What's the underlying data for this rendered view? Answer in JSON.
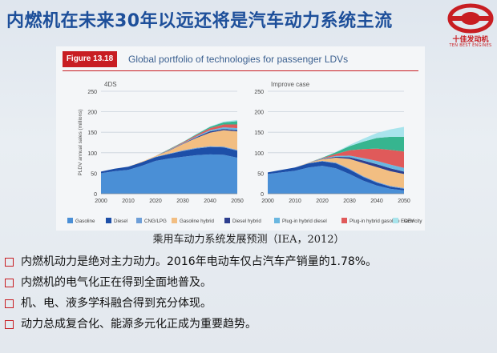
{
  "slide": {
    "title": "内燃机在未来30年以远还将是汽车动力系统主流",
    "logo_cn": "十佳发动机",
    "logo_en": "TEN BEST ENGINES",
    "caption": "乘用车动力系统发展预测（IEA，2012）",
    "bullets": [
      "内燃机动力是绝对主力动力。2016年电动车仅占汽车产销量的1.78%。",
      "内燃机的电气化正在得到全面地普及。",
      "机、电、液多学科融合得到充分体现。",
      "动力总成复合化、能源多元化正成为重要趋势。"
    ],
    "accent_color": "#c81d22",
    "title_color": "#1d4f9a"
  },
  "figure": {
    "badge": "Figure 13.18",
    "title": "Global portfolio of technologies for passenger LDVs"
  },
  "chart_data": [
    {
      "type": "area",
      "stacked": true,
      "title": "4DS",
      "ylabel": "PLDV annual sales (millions)",
      "xlabel": "",
      "x": [
        2000,
        2005,
        2010,
        2015,
        2020,
        2025,
        2030,
        2035,
        2040,
        2045,
        2050
      ],
      "xticks": [
        2000,
        2010,
        2020,
        2030,
        2040,
        2050
      ],
      "yticks": [
        0,
        50,
        100,
        150,
        200,
        250
      ],
      "ylim": [
        0,
        250
      ],
      "xlim": [
        2000,
        2050
      ],
      "series": [
        {
          "name": "Gasoline",
          "color": "#4a8fd6",
          "values": [
            50,
            55,
            58,
            68,
            80,
            86,
            90,
            94,
            96,
            95,
            88
          ]
        },
        {
          "name": "Diesel",
          "color": "#1d4fa8",
          "values": [
            4,
            6,
            8,
            9,
            9,
            11,
            14,
            16,
            18,
            18,
            17
          ]
        },
        {
          "name": "CNG/LPG",
          "color": "#6e9fd8",
          "values": [
            0,
            0,
            0,
            0,
            1,
            1,
            2,
            2,
            2,
            2,
            2
          ]
        },
        {
          "name": "Gasoline hybrid",
          "color": "#f2be82",
          "values": [
            0,
            0,
            0,
            1,
            2,
            7,
            15,
            24,
            33,
            40,
            45
          ]
        },
        {
          "name": "Diesel hybrid",
          "color": "#2e3f8f",
          "values": [
            0,
            0,
            0,
            0,
            0,
            1,
            1,
            2,
            3,
            3,
            3
          ]
        },
        {
          "name": "Plug-in hybrid diesel",
          "color": "#6ab7e0",
          "values": [
            0,
            0,
            0,
            0,
            0,
            1,
            1,
            2,
            3,
            4,
            5
          ]
        },
        {
          "name": "Plug-in hybrid gasoline",
          "color": "#e05a5a",
          "values": [
            0,
            0,
            0,
            0,
            0,
            1,
            2,
            3,
            5,
            7,
            9
          ]
        },
        {
          "name": "Electricity",
          "color": "#36b58f",
          "values": [
            0,
            0,
            0,
            0,
            0,
            1,
            1,
            2,
            3,
            5,
            8
          ]
        },
        {
          "name": "FCEV",
          "color": "#a8e4ec",
          "values": [
            0,
            0,
            0,
            0,
            0,
            0,
            0,
            1,
            1,
            2,
            3
          ]
        }
      ]
    },
    {
      "type": "area",
      "stacked": true,
      "title": "Improve case",
      "ylabel": "",
      "xlabel": "",
      "x": [
        2000,
        2005,
        2010,
        2015,
        2020,
        2025,
        2030,
        2035,
        2040,
        2045,
        2050
      ],
      "xticks": [
        2000,
        2010,
        2020,
        2030,
        2040,
        2050
      ],
      "yticks": [
        0,
        50,
        100,
        150,
        200,
        250
      ],
      "ylim": [
        0,
        250
      ],
      "xlim": [
        2000,
        2050
      ],
      "series": [
        {
          "name": "Gasoline",
          "color": "#4a8fd6",
          "values": [
            48,
            52,
            56,
            64,
            68,
            62,
            48,
            32,
            20,
            12,
            8
          ]
        },
        {
          "name": "Diesel",
          "color": "#1d4fa8",
          "values": [
            4,
            6,
            8,
            10,
            11,
            12,
            11,
            9,
            7,
            5,
            4
          ]
        },
        {
          "name": "CNG/LPG",
          "color": "#6e9fd8",
          "values": [
            0,
            0,
            0,
            1,
            1,
            2,
            2,
            2,
            2,
            2,
            2
          ]
        },
        {
          "name": "Gasoline hybrid",
          "color": "#f2be82",
          "values": [
            0,
            0,
            0,
            1,
            4,
            12,
            24,
            32,
            36,
            36,
            34
          ]
        },
        {
          "name": "Diesel hybrid",
          "color": "#2e3f8f",
          "values": [
            0,
            0,
            0,
            0,
            1,
            2,
            4,
            6,
            7,
            7,
            6
          ]
        },
        {
          "name": "Plug-in hybrid diesel",
          "color": "#6ab7e0",
          "values": [
            0,
            0,
            0,
            0,
            1,
            2,
            4,
            6,
            8,
            9,
            9
          ]
        },
        {
          "name": "Plug-in hybrid gasoline",
          "color": "#e05a5a",
          "values": [
            0,
            0,
            0,
            0,
            1,
            5,
            13,
            22,
            30,
            36,
            40
          ]
        },
        {
          "name": "Electricity",
          "color": "#36b58f",
          "values": [
            0,
            0,
            0,
            0,
            1,
            4,
            10,
            18,
            26,
            32,
            36
          ]
        },
        {
          "name": "FCEV",
          "color": "#a8e4ec",
          "values": [
            0,
            0,
            0,
            0,
            0,
            1,
            3,
            7,
            12,
            18,
            24
          ]
        }
      ]
    }
  ]
}
